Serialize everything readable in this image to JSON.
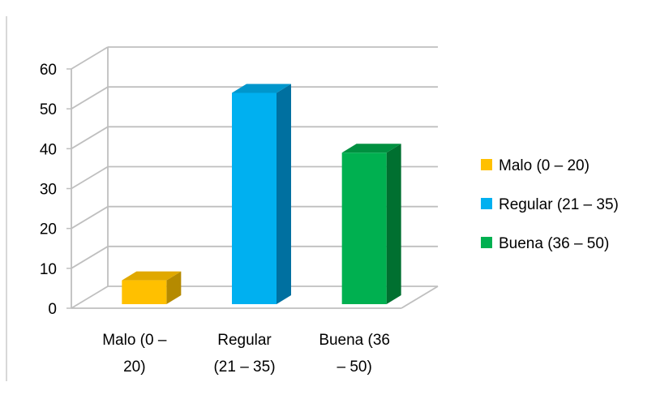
{
  "chart_data": {
    "type": "bar",
    "style": "3d-column",
    "categories": [
      {
        "line1": "Malo (0 –",
        "line2": "20)"
      },
      {
        "line1": "Regular",
        "line2": "(21 – 35)"
      },
      {
        "line1": "Buena (36",
        "line2": "– 50)"
      }
    ],
    "values": [
      7,
      54,
      39
    ],
    "ylim": [
      0,
      60
    ],
    "yticks": [
      "0",
      "10",
      "20",
      "30",
      "40",
      "50",
      "60"
    ],
    "grid": true,
    "legend_position": "right",
    "series": [
      {
        "name": "Malo (0 – 20)",
        "colors": {
          "front": "#FFC000",
          "top": "#E0A800",
          "side": "#B58A00"
        }
      },
      {
        "name": "Regular (21 – 35)",
        "colors": {
          "front": "#00B0F0",
          "top": "#0096CC",
          "side": "#0070A0"
        }
      },
      {
        "name": "Buena (36 – 50)",
        "colors": {
          "front": "#00B050",
          "top": "#009040",
          "side": "#007030"
        }
      }
    ],
    "title": "",
    "xlabel": "",
    "ylabel": ""
  }
}
